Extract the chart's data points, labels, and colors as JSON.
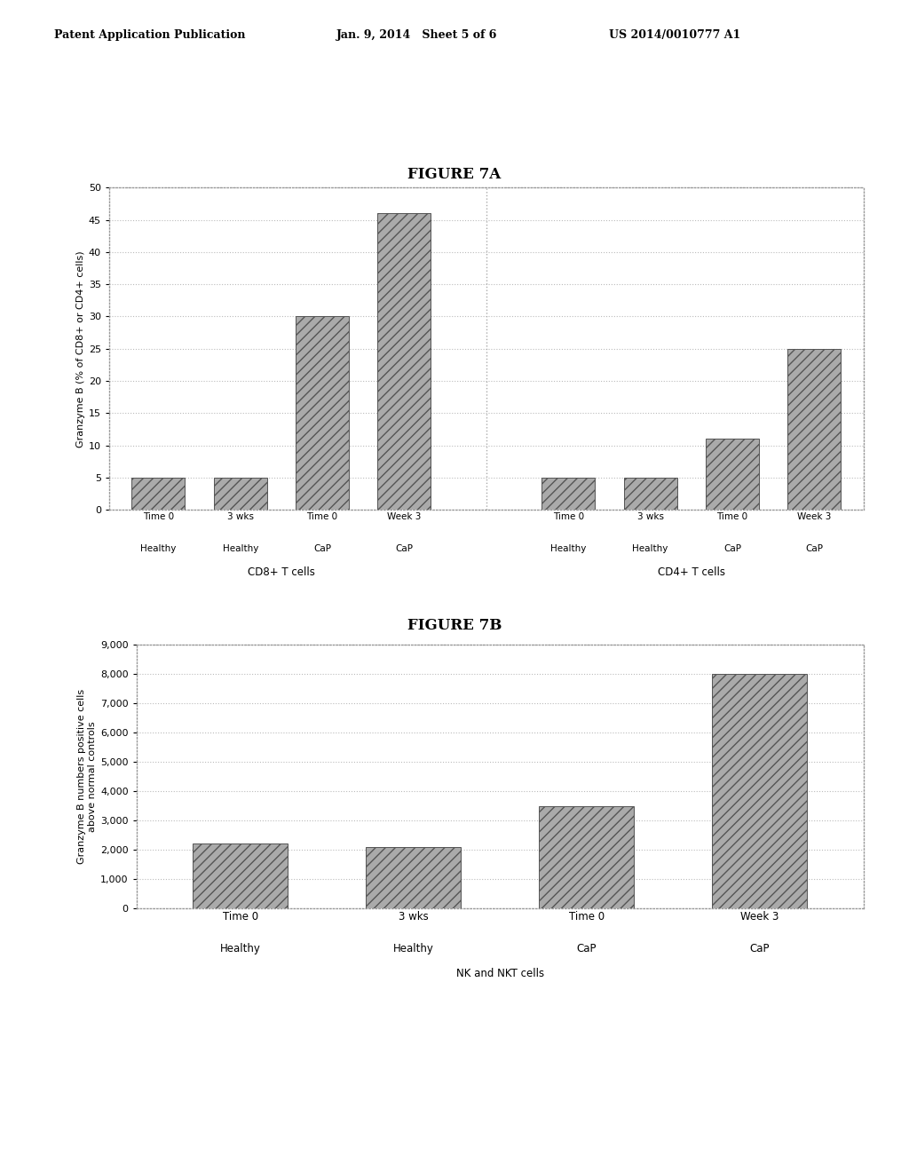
{
  "header_left": "Patent Application Publication",
  "header_mid": "Jan. 9, 2014   Sheet 5 of 6",
  "header_right": "US 2014/0010777 A1",
  "fig7a_title": "FIGURE 7A",
  "fig7b_title": "FIGURE 7B",
  "fig7a": {
    "values": [
      5,
      5,
      30,
      46,
      5,
      5,
      11,
      25
    ],
    "ylabel": "Granzyme B (% of CD8+ or CD4+ cells)",
    "ylim": [
      0,
      50
    ],
    "yticks": [
      0,
      5,
      10,
      15,
      20,
      25,
      30,
      35,
      40,
      45,
      50
    ],
    "time_labels": [
      "Time 0",
      "3 wks",
      "Time 0",
      "Week 3",
      "Time 0",
      "3 wks",
      "Time 0",
      "Week 3"
    ],
    "group_labels": [
      "Healthy",
      "Healthy",
      "CaP",
      "CaP",
      "Healthy",
      "Healthy",
      "CaP",
      "CaP"
    ],
    "group1_xlabel": "CD8+ T cells",
    "group2_xlabel": "CD4+ T cells"
  },
  "fig7b": {
    "values": [
      2200,
      2100,
      3500,
      8000
    ],
    "ylabel": "Granzyme B numbers positive cells\nabove normal controls",
    "ylim": [
      0,
      9000
    ],
    "yticks": [
      0,
      1000,
      2000,
      3000,
      4000,
      5000,
      6000,
      7000,
      8000,
      9000
    ],
    "time_labels": [
      "Time 0",
      "3 wks",
      "Time 0",
      "Week 3"
    ],
    "group_labels": [
      "Healthy",
      "Healthy",
      "CaP",
      "CaP"
    ],
    "xlabel": "NK and NKT cells"
  },
  "bar_color": "#aaaaaa",
  "bar_hatch": "///",
  "background_color": "#ffffff",
  "grid_color": "#bbbbbb",
  "border_color": "#999999"
}
